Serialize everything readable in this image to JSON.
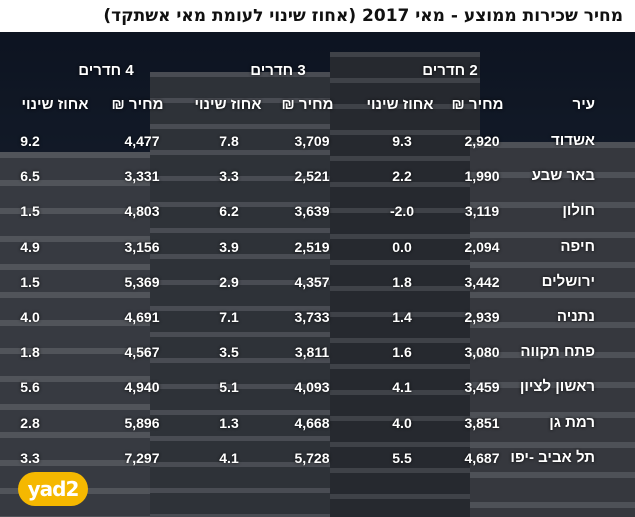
{
  "title": "מחיר שכירות ממוצע - מאי 2017 (אחוז שינוי לעומת מאי אשתקד)",
  "groups": [
    "2 חדרים",
    "3 חדרים",
    "4 חדרים"
  ],
  "headers": {
    "city": "עיר",
    "price": "מחיר ₪",
    "change": "אחוז שינוי"
  },
  "rows": [
    {
      "city": "אשדוד",
      "p2": "2,920",
      "c2": "9.3",
      "p3": "3,709",
      "c3": "7.8",
      "p4": "4,477",
      "c4": "9.2"
    },
    {
      "city": "באר שבע",
      "p2": "1,990",
      "c2": "2.2",
      "p3": "2,521",
      "c3": "3.3",
      "p4": "3,331",
      "c4": "6.5"
    },
    {
      "city": "חולון",
      "p2": "3,119",
      "c2": "-2.0",
      "p3": "3,639",
      "c3": "6.2",
      "p4": "4,803",
      "c4": "1.5"
    },
    {
      "city": "חיפה",
      "p2": "2,094",
      "c2": "0.0",
      "p3": "2,519",
      "c3": "3.9",
      "p4": "3,156",
      "c4": "4.9"
    },
    {
      "city": "ירושלים",
      "p2": "3,442",
      "c2": "1.8",
      "p3": "4,357",
      "c3": "2.9",
      "p4": "5,369",
      "c4": "1.5"
    },
    {
      "city": "נתניה",
      "p2": "2,939",
      "c2": "1.4",
      "p3": "3,733",
      "c3": "7.1",
      "p4": "4,691",
      "c4": "4.0"
    },
    {
      "city": "פתח תקווה",
      "p2": "3,080",
      "c2": "1.6",
      "p3": "3,811",
      "c3": "3.5",
      "p4": "4,567",
      "c4": "1.8"
    },
    {
      "city": "ראשון לציון",
      "p2": "3,459",
      "c2": "4.1",
      "p3": "4,093",
      "c3": "5.1",
      "p4": "4,940",
      "c4": "5.6"
    },
    {
      "city": "רמת גן",
      "p2": "3,851",
      "c2": "4.0",
      "p3": "4,668",
      "c3": "1.3",
      "p4": "5,896",
      "c4": "2.8"
    },
    {
      "city": "תל אביב -יפו",
      "p2": "4,687",
      "c2": "5.5",
      "p3": "5,728",
      "c3": "4.1",
      "p4": "7,297",
      "c4": "3.3"
    }
  ],
  "logo": "yad2",
  "colors": {
    "text": "#ffffff",
    "logo": "#f5b800"
  }
}
